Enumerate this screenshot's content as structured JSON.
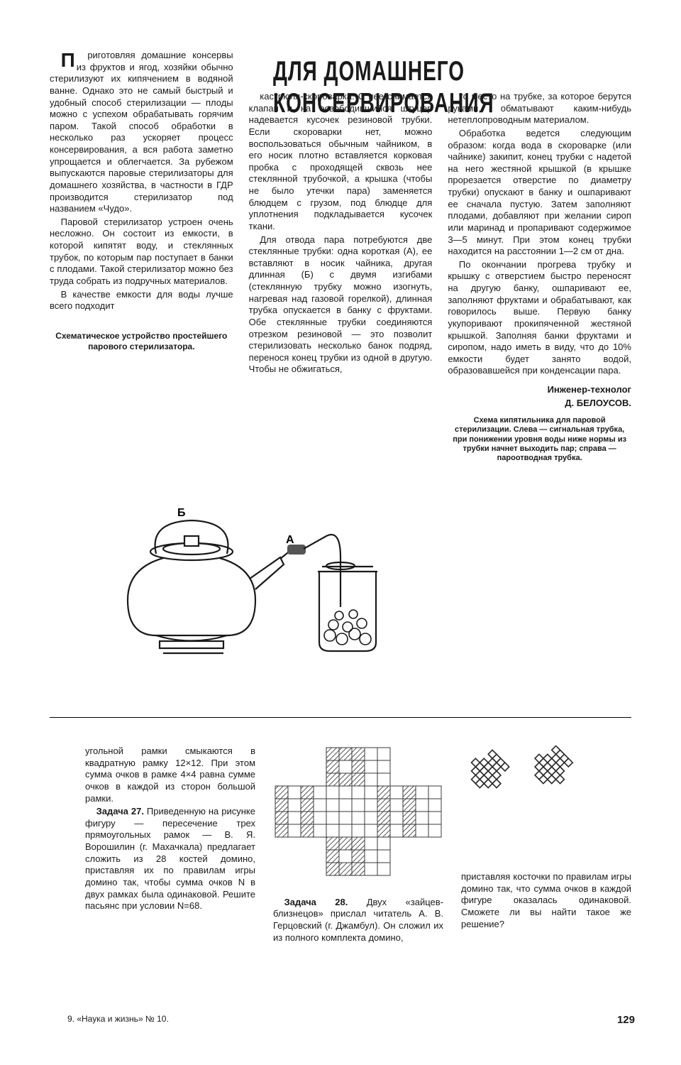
{
  "headline": "ДЛЯ ДОМАШНЕГО КОНСЕРВИРОВАНИЯ",
  "article": {
    "p1": "Приготовляя домашние консервы из фруктов и ягод, хозяйки обычно стерилизуют их кипячением в водяной ванне. Однако это не самый быстрый и удобный способ стерилизации — плоды можно с успехом обрабатывать горячим паром. Такой способ обработки в несколько раз ускоряет процесс консервирования, а вся работа заметно упрощается и облегчается. За рубежом выпускаются паровые стерилизаторы для домашнего хозяйства, в частности в ГДР производится стерилизатор под названием «Чудо».",
    "p2": "Паровой стерилизатор устроен очень несложно. Он состоит из емкости, в которой кипятят воду, и стеклянных трубок, по которым пар поступает в банки с плодами. Такой стерилизатор можно без труда собрать из подручных материалов.",
    "p3": "В качестве емкости для воды лучше всего подходит",
    "caption1": "Схематическое устройство простейшего парового стерилизатора.",
    "p4": "кастрюля-скороварка. С нее снимается клапан и на освободившийся штуцер надевается кусочек резиновой трубки. Если скороварки нет, можно воспользоваться обычным чайником, в его носик плотно вставляется корковая пробка с проходящей сквозь нее стеклянной трубочкой, а крышка (чтобы не было утечки пара) заменяется блюдцем с грузом, под блюдце для уплотнения подкладывается кусочек ткани.",
    "p5": "Для отвода пара потребуются две стеклянные трубки: одна короткая (А), ее вставляют в носик чайника, другая длинная (Б) с двумя изгибами (стеклянную трубку можно изогнуть, нагревая над газовой горелкой), длинная трубка опускается в банку с фруктами. Обе стеклянные трубки соединяются отрезком резиновой — это позволит стерилизовать несколько банок подряд, перенося конец трубки из одной в другую. Чтобы не обжигаться,",
    "p6": "то место на трубке, за которое берутся руками, обматывают каким-нибудь нетеплопроводным материалом.",
    "p7": "Обработка ведется следующим образом: когда вода в скороварке (или чайнике) закипит, конец трубки с надетой на него жестяной крышкой (в крышке прорезается отверстие по диаметру трубки) опускают в банку и ошпаривают ее сначала пустую. Затем заполняют плодами, добавляют при желании сироп или маринад и пропаривают содержимое 3—5 минут. При этом конец трубки находится на расстоянии 1—2 см от дна.",
    "p8": "По окончании прогрева трубку и крышку с отверстием быстро переносят на другую банку, ошпаривают ее, заполняют фруктами и обрабатывают, как говорилось выше. Первую банку укупоривают прокипяченной жестяной крышкой. Заполняя банки фруктами и сиропом, надо иметь в виду, что до 10% емкости будет занято водой, образовавшейся при конденсации пара.",
    "author1": "Инженер-технолог",
    "author2": "Д. БЕЛОУСОВ.",
    "caption2": "Схема кипятильника для паровой стерилизации. Слева — сигнальная трубка, при понижении уровня воды ниже нормы из трубки начнет выходить пар; справа — пароотводная трубка."
  },
  "lower": {
    "col1a": "угольной рамки смыкаются в квадратную рамку 12×12. При этом сумма очков в рамке 4×4 равна сумме очков в каждой из сторон большой рамки.",
    "col1b_label": "Задача 27.",
    "col1b": " Приведенную на рисунке фигуру — пересечение трех прямоугольных рамок — В. Я. Ворошилин (г. Махачкала) предлагает сложить из 28 костей домино, приставляя их по правилам игры домино так, чтобы сумма очков N в двух рамках была одинаковой. Решите пасьянс при условии N=68.",
    "col2_label": "Задача 28.",
    "col2": " Двух «зайцев-близнецов» прислал читатель А. В. Герцовский (г. Джамбул). Он сложил их из полного комплекта домино,",
    "col3": "приставляя косточки по правилам игры домино так, что сумма очков в каждой фигуре оказалась одинаковой. Сможете ли вы найти такое же решение?"
  },
  "footer_left": "9. «Наука и жизнь» № 10.",
  "pagenum": "129",
  "fig1_labels": {
    "A": "А",
    "B": "Б"
  },
  "grid": {
    "cols": 13,
    "rows": 10,
    "cell": 18,
    "stroke": "#3a3a3a",
    "hatch": "#555555",
    "shaded": [
      [
        0,
        3
      ],
      [
        0,
        4
      ],
      [
        0,
        5
      ],
      [
        0,
        6
      ],
      [
        2,
        3
      ],
      [
        2,
        4
      ],
      [
        2,
        5
      ],
      [
        2,
        6
      ],
      [
        4,
        0
      ],
      [
        4,
        1
      ],
      [
        4,
        2
      ],
      [
        4,
        7
      ],
      [
        4,
        8
      ],
      [
        4,
        9
      ],
      [
        5,
        0
      ],
      [
        5,
        2
      ],
      [
        5,
        7
      ],
      [
        5,
        9
      ],
      [
        6,
        0
      ],
      [
        6,
        1
      ],
      [
        6,
        2
      ],
      [
        6,
        7
      ],
      [
        6,
        8
      ],
      [
        6,
        9
      ],
      [
        8,
        3
      ],
      [
        8,
        4
      ],
      [
        8,
        5
      ],
      [
        8,
        6
      ],
      [
        10,
        3
      ],
      [
        10,
        4
      ],
      [
        10,
        5
      ],
      [
        10,
        6
      ]
    ]
  },
  "bunny": {
    "size": 13,
    "stroke": "#2a2a2a",
    "fill": "#ffffff"
  }
}
